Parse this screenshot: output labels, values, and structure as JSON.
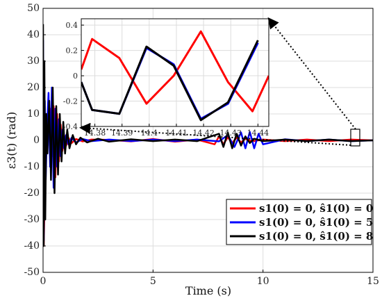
{
  "chart_data": [
    {
      "type": "line",
      "title": "",
      "xlabel": "Time (s)",
      "ylabel": "ε3(t) (rad)",
      "xlim": [
        0,
        15
      ],
      "ylim": [
        -50,
        50
      ],
      "xticks": [
        "0",
        "5",
        "10",
        "15"
      ],
      "yticks": [
        "50",
        "40",
        "30",
        "20",
        "10",
        "0",
        "-10",
        "-20",
        "-30",
        "-40",
        "-50"
      ],
      "grid": true,
      "legend_position": "bottom-right",
      "series": [
        {
          "name": "s1(0) = 0, ŝ1(0) = 0",
          "color": "#ff0000",
          "x": [
            0,
            0.03,
            0.08,
            0.12,
            0.18,
            0.25,
            0.32,
            0.4,
            0.48,
            0.56,
            0.64,
            0.72,
            0.8,
            0.88,
            0.96,
            1.05,
            1.15,
            1.3,
            1.5,
            1.8,
            2.2,
            3,
            4,
            5,
            6,
            7,
            7.8,
            8.0,
            8.2,
            8.4,
            8.6,
            8.8,
            9.0,
            9.2,
            9.5,
            10,
            11,
            12,
            13,
            14,
            15
          ],
          "y": [
            0,
            -40,
            -20,
            2,
            6,
            10,
            12,
            -6,
            13,
            -14,
            10,
            -8,
            6,
            -4,
            2,
            -2,
            1,
            -1,
            0.5,
            -0.4,
            0.3,
            0.2,
            -0.4,
            0.5,
            -0.5,
            0.3,
            -1.5,
            1.5,
            -1.5,
            1.2,
            -1,
            1,
            -0.8,
            0.6,
            -0.4,
            0.3,
            -0.3,
            0.3,
            -0.3,
            0.3,
            0
          ]
        },
        {
          "name": "s1(0) = 0, ŝ1(0) = 5",
          "color": "#0000ff",
          "x": [
            0,
            0.03,
            0.08,
            0.12,
            0.18,
            0.25,
            0.32,
            0.4,
            0.48,
            0.56,
            0.64,
            0.72,
            0.8,
            0.88,
            0.96,
            1.05,
            1.15,
            1.3,
            1.5,
            1.8,
            2.2,
            3,
            4,
            5,
            6,
            7,
            8,
            8.4,
            8.7,
            9.0,
            9.2,
            9.4,
            9.6,
            9.8,
            10,
            11,
            12,
            13,
            14,
            15
          ],
          "y": [
            38,
            -38,
            15,
            -15,
            5,
            18,
            -10,
            20,
            -18,
            12,
            -10,
            8,
            -6,
            4,
            -3,
            2,
            -1.5,
            1,
            -0.8,
            0.5,
            -0.3,
            0.3,
            -0.3,
            0.3,
            -0.3,
            0.3,
            -0.4,
            2,
            -2.5,
            3,
            -3,
            3.2,
            -3,
            2.5,
            -1.5,
            0.4,
            -0.3,
            0.3,
            -0.3,
            0
          ]
        },
        {
          "name": "s1(0) = 0, ŝ1(0) = 8",
          "color": "#000000",
          "x": [
            0,
            0.03,
            0.06,
            0.1,
            0.15,
            0.2,
            0.28,
            0.36,
            0.44,
            0.52,
            0.6,
            0.68,
            0.76,
            0.84,
            0.92,
            1.0,
            1.1,
            1.2,
            1.35,
            1.5,
            1.7,
            2.0,
            2.5,
            3,
            4,
            5,
            6,
            7,
            8,
            8.2,
            8.4,
            8.6,
            8.8,
            9.0,
            9.2,
            9.4,
            9.6,
            10,
            11,
            12,
            13,
            14,
            15
          ],
          "y": [
            44,
            -40,
            30,
            -30,
            10,
            -5,
            15,
            -15,
            20,
            -20,
            13,
            -13,
            10,
            -8,
            7,
            -5,
            4,
            -3,
            2,
            -1.5,
            1,
            -0.8,
            0.6,
            -0.5,
            0.4,
            -0.3,
            0.3,
            -0.3,
            2.5,
            -2.5,
            3,
            -3,
            2.5,
            -2,
            1.5,
            -1,
            0.6,
            -0.3,
            0.3,
            -0.3,
            0.3,
            -0.3,
            0
          ]
        }
      ]
    },
    {
      "type": "line",
      "title": "",
      "inset": true,
      "xlim": [
        14.375,
        14.444
      ],
      "ylim": [
        -0.4,
        0.45
      ],
      "xticks": [
        "14.38",
        "14.39",
        "14.4",
        "14.41",
        "14.42",
        "14.43",
        "14.44"
      ],
      "yticks": [
        "0.4",
        "0.2",
        "0",
        "-0.2",
        "-0.4"
      ],
      "grid": true,
      "series": [
        {
          "name": "s1(0) = 0, ŝ1(0) = 0",
          "color": "#ff0000",
          "x": [
            14.375,
            14.379,
            14.389,
            14.399,
            14.409,
            14.419,
            14.429,
            14.438,
            14.444
          ],
          "y": [
            0.05,
            0.29,
            0.14,
            -0.22,
            0.0,
            0.35,
            -0.05,
            -0.28,
            0.0
          ]
        },
        {
          "name": "s1(0) = 0, ŝ1(0) = 5",
          "color": "#0000ff",
          "x": [
            14.375,
            14.379,
            14.389,
            14.399,
            14.409,
            14.419,
            14.429,
            14.44
          ],
          "y": [
            -0.05,
            -0.27,
            -0.3,
            0.22,
            0.09,
            -0.34,
            -0.22,
            0.26
          ]
        },
        {
          "name": "s1(0) = 0, ŝ1(0) = 8",
          "color": "#000000",
          "x": [
            14.375,
            14.379,
            14.389,
            14.399,
            14.409,
            14.419,
            14.429,
            14.44
          ],
          "y": [
            -0.05,
            -0.27,
            -0.3,
            0.23,
            0.08,
            -0.35,
            -0.21,
            0.28
          ]
        }
      ]
    }
  ],
  "legend": {
    "entries": [
      "s1(0) = 0, ŝ1(0) = 0",
      "s1(0) = 0, ŝ1(0) = 5",
      "s1(0) = 0, ŝ1(0) = 8"
    ]
  }
}
